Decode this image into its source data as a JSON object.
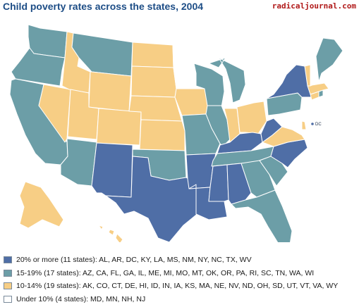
{
  "title": "Child poverty rates across the states, 2004",
  "brand": "radicaljournal.com",
  "colors": {
    "c20plus": "#4f6ea6",
    "c15_19": "#6c9ea7",
    "c10_14": "#f7ce85",
    "under10": "#ffffff",
    "border": "#ffffff",
    "title": "#1d4d86"
  },
  "map": {
    "dc_label": "DC",
    "state_categories": {
      "20_or_more": [
        "AL",
        "AR",
        "DC",
        "KY",
        "LA",
        "MS",
        "NM",
        "NY",
        "NC",
        "TX",
        "WV"
      ],
      "15_19": [
        "AZ",
        "CA",
        "FL",
        "GA",
        "IL",
        "ME",
        "MI",
        "MO",
        "MT",
        "OK",
        "OR",
        "PA",
        "RI",
        "SC",
        "TN",
        "WA",
        "WI"
      ],
      "10_14": [
        "AK",
        "CO",
        "CT",
        "DE",
        "HI",
        "ID",
        "IN",
        "IA",
        "KS",
        "MA",
        "NE",
        "NV",
        "ND",
        "OH",
        "SD",
        "UT",
        "VT",
        "VA",
        "WY"
      ],
      "under_10": [
        "MD",
        "MN",
        "NH",
        "NJ"
      ]
    }
  },
  "legend": {
    "items": [
      {
        "color": "#4f6ea6",
        "label": "20% or more (11 states): AL, AR, DC, KY, LA, MS, NM, NY, NC, TX, WV"
      },
      {
        "color": "#6c9ea7",
        "label": "15-19% (17 states): AZ, CA, FL, GA, IL, ME, MI, MO, MT, OK, OR, PA, RI, SC, TN, WA, WI"
      },
      {
        "color": "#f7ce85",
        "label": "10-14% (19 states): AK, CO, CT, DE, HI, ID, IN, IA, KS, MA, NE, NV, ND, OH, SD, UT, VT, VA, WY"
      },
      {
        "color": "#ffffff",
        "label": "Under 10% (4 states): MD, MN, NH, NJ"
      }
    ]
  }
}
